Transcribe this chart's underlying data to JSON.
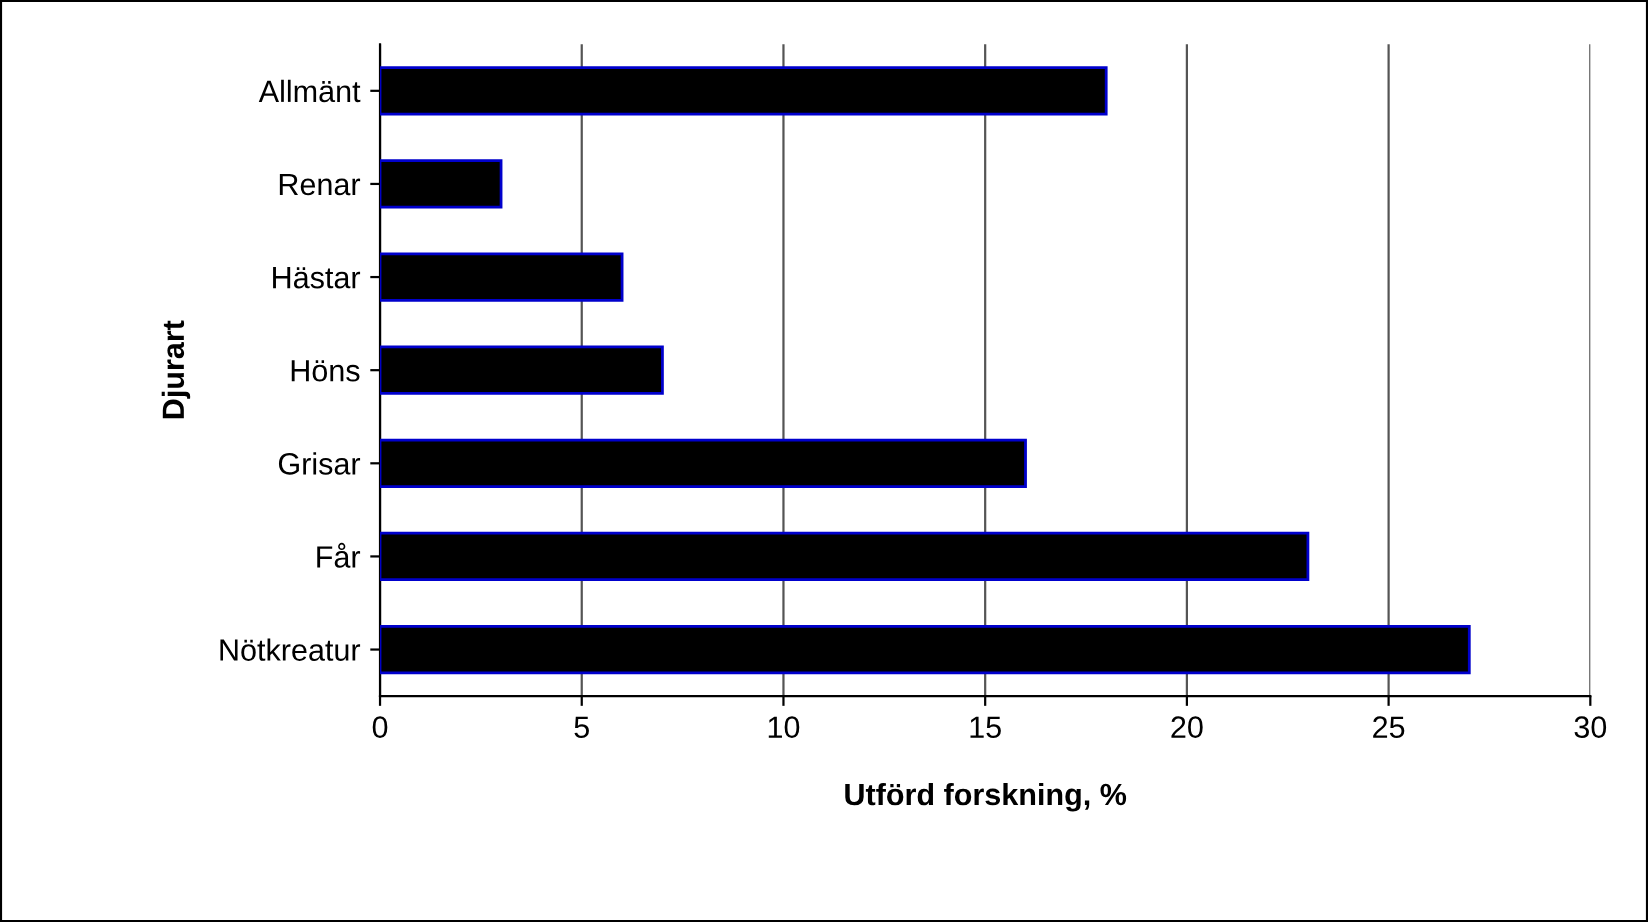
{
  "chart_data": {
    "type": "bar",
    "orientation": "horizontal",
    "xlabel": "Utförd forskning, %",
    "ylabel": "Djurart",
    "categories": [
      "Allmänt",
      "Renar",
      "Hästar",
      "Höns",
      "Grisar",
      "Får",
      "Nötkreatur"
    ],
    "values": [
      18,
      3,
      6,
      7,
      16,
      23,
      27
    ],
    "color": "#000000",
    "xlim": [
      0,
      30
    ],
    "xticks": [
      0,
      5,
      10,
      15,
      20,
      25,
      30
    ],
    "grid": "x",
    "legend": false
  }
}
